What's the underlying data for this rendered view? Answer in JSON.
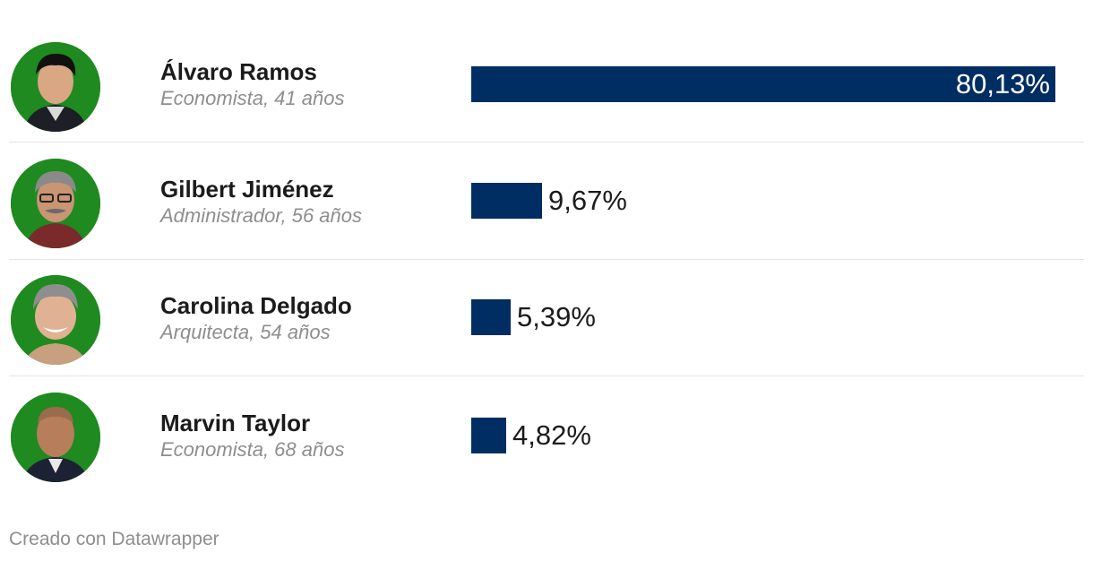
{
  "chart_data": {
    "type": "bar",
    "orientation": "horizontal",
    "xlim": [
      0,
      80.13
    ],
    "bar_color": "#002d62",
    "avatar_bg": "#1f8a1f",
    "candidates": [
      {
        "name": "Álvaro Ramos",
        "subtitle": "Economista, 41 años",
        "value": 80.13,
        "label": "80,13%"
      },
      {
        "name": "Gilbert Jiménez",
        "subtitle": "Administrador, 56 años",
        "value": 9.67,
        "label": "9,67%"
      },
      {
        "name": "Carolina Delgado",
        "subtitle": "Arquitecta, 54 años",
        "value": 5.39,
        "label": "5,39%"
      },
      {
        "name": "Marvin Taylor",
        "subtitle": "Economista, 68 años",
        "value": 4.82,
        "label": "4,82%"
      }
    ]
  },
  "footer": {
    "credit": "Creado con Datawrapper"
  }
}
